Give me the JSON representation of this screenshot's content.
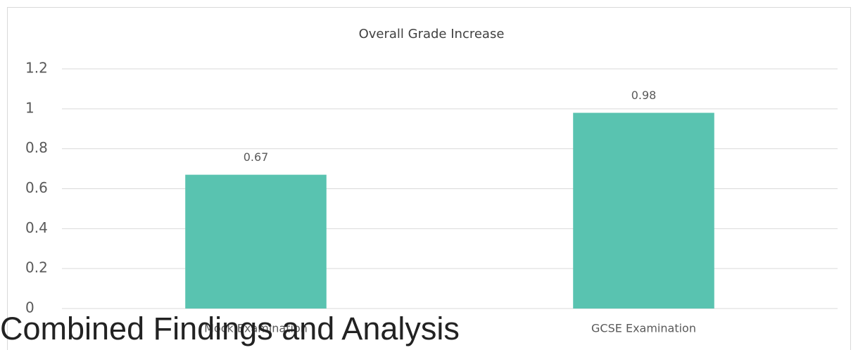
{
  "chart_data": {
    "type": "bar",
    "title": "Overall Grade Increase",
    "categories": [
      "Mock Examination",
      "GCSE Examination"
    ],
    "values": [
      0.67,
      0.98
    ],
    "color": "#59c3b0",
    "ylim": [
      0,
      1.2
    ],
    "yticks": [
      0,
      0.2,
      0.4,
      0.6,
      0.8,
      1,
      1.2
    ],
    "grid": true
  },
  "heading": "Combined Findings and Analysis"
}
